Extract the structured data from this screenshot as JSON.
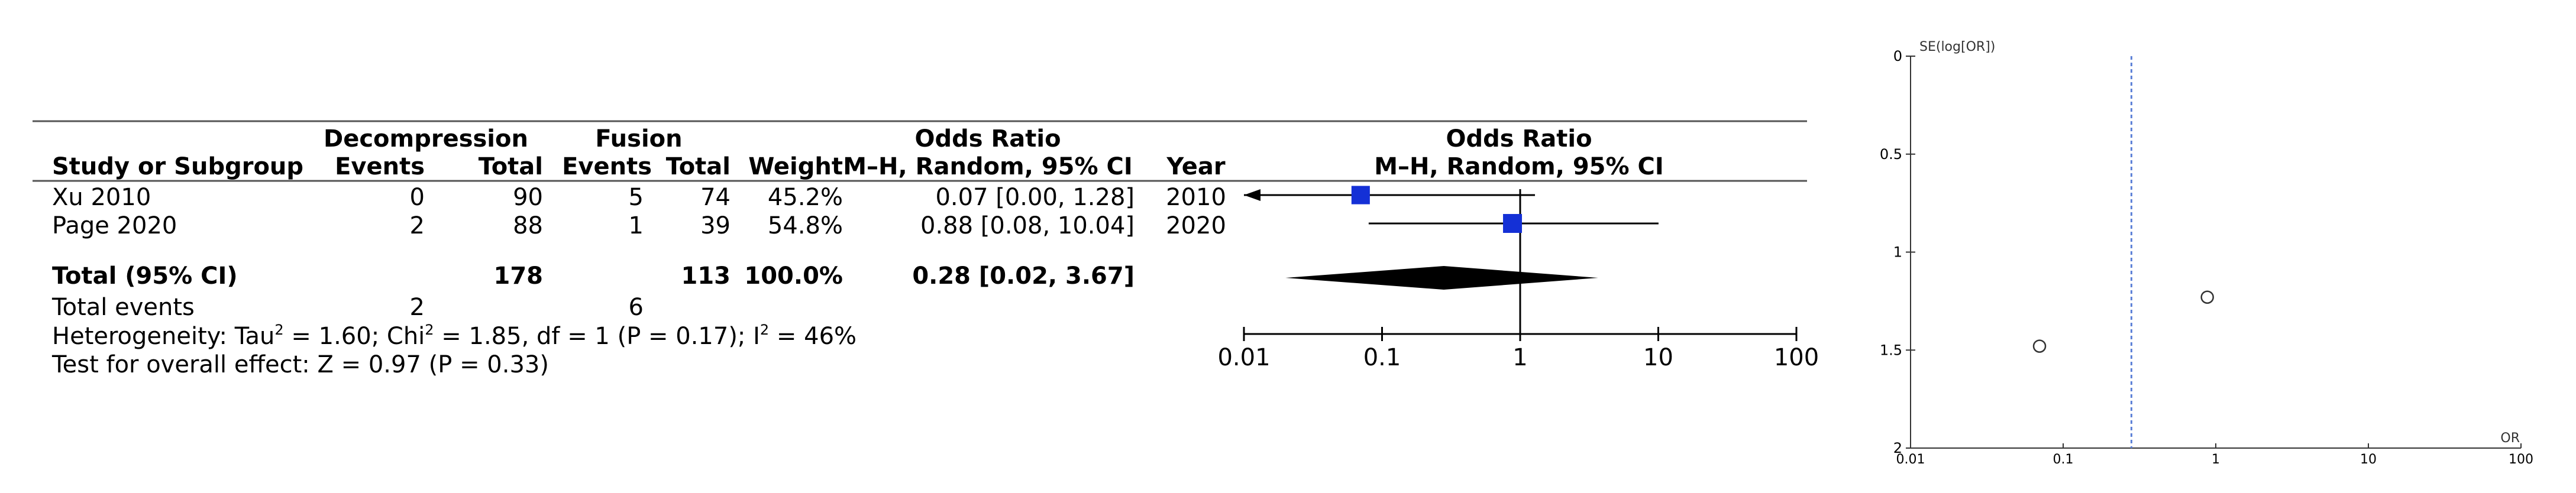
{
  "forest": {
    "group_headers": {
      "experimental": "Decompression",
      "control": "Fusion",
      "effect": "Odds Ratio",
      "plot": "Odds Ratio"
    },
    "columns": {
      "study": "Study or Subgroup",
      "events1": "Events",
      "total1": "Total",
      "events2": "Events",
      "total2": "Total",
      "weight": "Weight",
      "ci": "M–H, Random, 95% CI",
      "year": "Year",
      "plot": "M–H, Random, 95% CI"
    },
    "rows": [
      {
        "study": "Xu 2010",
        "events1": "0",
        "total1": "90",
        "events2": "5",
        "total2": "74",
        "weight": "45.2%",
        "ci": "0.07 [0.00, 1.28]",
        "year": "2010"
      },
      {
        "study": "Page 2020",
        "events1": "2",
        "total1": "88",
        "events2": "1",
        "total2": "39",
        "weight": "54.8%",
        "ci": "0.88 [0.08, 10.04]",
        "year": "2020"
      }
    ],
    "total": {
      "label": "Total (95% CI)",
      "total1": "178",
      "total2": "113",
      "weight": "100.0%",
      "ci": "0.28 [0.02, 3.67]"
    },
    "total_events": {
      "label": "Total events",
      "events1": "2",
      "events2": "6"
    },
    "heterogeneity": {
      "prefix": "Heterogeneity: Tau",
      "tau_eq": " = 1.60; Chi",
      "chi_eq": " = 1.85, df = 1 (P = 0.17); I",
      "i_eq": " = 46%",
      "sup": "2"
    },
    "overall": "Test for overall effect: Z = 0.97 (P = 0.33)",
    "axis_ticks": [
      "0.01",
      "0.1",
      "1",
      "10",
      "100"
    ]
  },
  "funnel": {
    "ylabel": "SE(log[OR])",
    "xlabel": "OR",
    "x_ticks": [
      "0.01",
      "0.1",
      "1",
      "10",
      "100"
    ],
    "y_ticks": [
      "0",
      "0.5",
      "1",
      "1.5",
      "2"
    ]
  },
  "chart_data": [
    {
      "type": "forest",
      "scale": "log",
      "xlim": [
        0.01,
        100
      ],
      "studies": [
        {
          "name": "Xu 2010",
          "or": 0.07,
          "lower": 0.0,
          "upper": 1.28,
          "weight": 45.2
        },
        {
          "name": "Page 2020",
          "or": 0.88,
          "lower": 0.08,
          "upper": 10.04,
          "weight": 54.8
        }
      ],
      "pooled": {
        "or": 0.28,
        "lower": 0.02,
        "upper": 3.67
      }
    },
    {
      "type": "scatter",
      "xscale": "log",
      "xlim": [
        0.01,
        100
      ],
      "ylim": [
        0,
        2
      ],
      "y_inverted": true,
      "points": [
        {
          "x": 0.07,
          "y": 1.48
        },
        {
          "x": 0.88,
          "y": 1.23
        }
      ],
      "reference_line_x": 0.28
    }
  ]
}
